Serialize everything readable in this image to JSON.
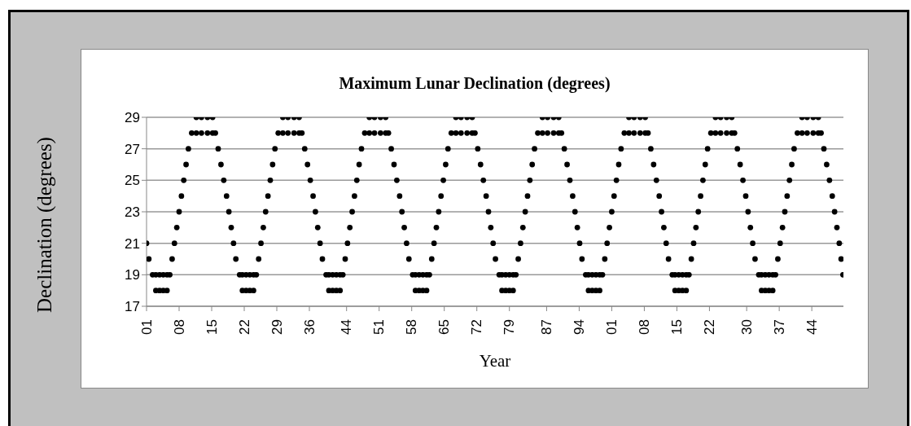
{
  "chart_data": {
    "type": "scatter",
    "title": "Maximum Lunar Declination  (degrees)",
    "xlabel": "Year",
    "ylabel": "Declination (degrees)",
    "color": "#000000",
    "marker": "circle",
    "grid": "y",
    "ylim": [
      17,
      29
    ],
    "yticks": [
      17,
      19,
      21,
      23,
      25,
      27,
      29
    ],
    "xlim": [
      1901,
      2050.8
    ],
    "xticks": [
      {
        "value": 1901,
        "label": "01"
      },
      {
        "value": 1908,
        "label": "08"
      },
      {
        "value": 1915,
        "label": "15"
      },
      {
        "value": 1922,
        "label": "22"
      },
      {
        "value": 1929,
        "label": "29"
      },
      {
        "value": 1936,
        "label": "36"
      },
      {
        "value": 1944,
        "label": "44"
      },
      {
        "value": 1951,
        "label": "51"
      },
      {
        "value": 1958,
        "label": "58"
      },
      {
        "value": 1965,
        "label": "65"
      },
      {
        "value": 1972,
        "label": "72"
      },
      {
        "value": 1979,
        "label": "79"
      },
      {
        "value": 1987,
        "label": "87"
      },
      {
        "value": 1994,
        "label": "94"
      },
      {
        "value": 2001,
        "label": "01"
      },
      {
        "value": 2008,
        "label": "08"
      },
      {
        "value": 2015,
        "label": "15"
      },
      {
        "value": 2022,
        "label": "22"
      },
      {
        "value": 2030,
        "label": "30"
      },
      {
        "value": 2037,
        "label": "37"
      },
      {
        "value": 2044,
        "label": "44"
      }
    ],
    "x": [
      1901.0,
      1901.5,
      1902.3,
      1903.0,
      1903.0,
      1903.8,
      1903.8,
      1904.6,
      1904.6,
      1905.4,
      1905.4,
      1906.0,
      1906.5,
      1907.0,
      1907.5,
      1908.0,
      1908.5,
      1909.0,
      1909.5,
      1910.0,
      1910.7,
      1911.7,
      1911.7,
      1912.8,
      1912.8,
      1914.1,
      1914.1,
      1915.2,
      1915.2,
      1915.8,
      1916.4,
      1917.0,
      1917.6,
      1918.2,
      1918.7,
      1919.2,
      1919.7,
      1920.2,
      1921.0,
      1921.6,
      1921.6,
      1922.4,
      1922.4,
      1923.2,
      1923.2,
      1924.0,
      1924.0,
      1924.6,
      1925.1,
      1925.6,
      1926.1,
      1926.6,
      1927.1,
      1927.6,
      1928.1,
      1928.6,
      1929.3,
      1930.3,
      1930.3,
      1931.4,
      1931.4,
      1932.7,
      1932.7,
      1933.8,
      1933.8,
      1934.4,
      1935.0,
      1935.6,
      1936.2,
      1936.8,
      1937.3,
      1937.8,
      1938.3,
      1938.8,
      1939.6,
      1940.2,
      1940.2,
      1941.0,
      1941.0,
      1941.8,
      1941.8,
      1942.6,
      1942.6,
      1943.2,
      1943.7,
      1944.2,
      1944.7,
      1945.2,
      1945.7,
      1946.2,
      1946.7,
      1947.2,
      1947.9,
      1948.9,
      1948.9,
      1950.0,
      1950.0,
      1951.3,
      1951.3,
      1952.4,
      1952.4,
      1953.0,
      1953.6,
      1954.2,
      1954.8,
      1955.4,
      1955.9,
      1956.4,
      1956.9,
      1957.4,
      1958.2,
      1958.8,
      1958.8,
      1959.6,
      1959.6,
      1960.4,
      1960.4,
      1961.2,
      1961.2,
      1961.8,
      1962.3,
      1962.8,
      1963.3,
      1963.8,
      1964.3,
      1964.8,
      1965.3,
      1965.8,
      1966.5,
      1967.5,
      1967.5,
      1968.6,
      1968.6,
      1969.9,
      1969.9,
      1971.0,
      1971.0,
      1971.6,
      1972.2,
      1972.8,
      1973.4,
      1974.0,
      1974.5,
      1975.0,
      1975.5,
      1976.0,
      1976.8,
      1977.4,
      1977.4,
      1978.2,
      1978.2,
      1979.0,
      1979.0,
      1979.8,
      1979.8,
      1980.4,
      1980.9,
      1981.4,
      1981.9,
      1982.4,
      1982.9,
      1983.4,
      1983.9,
      1984.4,
      1985.1,
      1986.1,
      1986.1,
      1987.2,
      1987.2,
      1988.5,
      1988.5,
      1989.6,
      1989.6,
      1990.2,
      1990.8,
      1991.4,
      1992.0,
      1992.6,
      1993.1,
      1993.6,
      1994.1,
      1994.6,
      1995.4,
      1996.0,
      1996.0,
      1996.8,
      1996.8,
      1997.6,
      1997.6,
      1998.4,
      1998.4,
      1999.0,
      1999.5,
      2000.0,
      2000.5,
      2001.0,
      2001.5,
      2002.0,
      2002.5,
      2003.0,
      2003.7,
      2004.7,
      2004.7,
      2005.8,
      2005.8,
      2007.1,
      2007.1,
      2008.2,
      2008.2,
      2008.8,
      2009.4,
      2010.0,
      2010.6,
      2011.2,
      2011.7,
      2012.2,
      2012.7,
      2013.2,
      2014.0,
      2014.6,
      2014.6,
      2015.4,
      2015.4,
      2016.2,
      2016.2,
      2017.0,
      2017.0,
      2017.6,
      2018.1,
      2018.6,
      2019.1,
      2019.6,
      2020.1,
      2020.6,
      2021.1,
      2021.6,
      2022.3,
      2023.3,
      2023.3,
      2024.4,
      2024.4,
      2025.7,
      2025.7,
      2026.8,
      2026.8,
      2027.4,
      2028.0,
      2028.6,
      2029.2,
      2029.8,
      2030.3,
      2030.8,
      2031.3,
      2031.8,
      2032.6,
      2033.2,
      2033.2,
      2034.0,
      2034.0,
      2034.8,
      2034.8,
      2035.6,
      2035.6,
      2036.2,
      2036.7,
      2037.2,
      2037.7,
      2038.2,
      2038.7,
      2039.2,
      2039.7,
      2040.2,
      2040.9,
      2041.9,
      2041.9,
      2043.0,
      2043.0,
      2044.3,
      2044.3,
      2045.4,
      2045.4,
      2046.0,
      2046.6,
      2047.2,
      2047.8,
      2048.4,
      2048.9,
      2049.4,
      2049.9,
      2050.3,
      2050.7
    ],
    "values": [
      21,
      20,
      19,
      19,
      18,
      19,
      18,
      19,
      18,
      19,
      18,
      19,
      20,
      21,
      22,
      23,
      24,
      25,
      26,
      27,
      28,
      28,
      29,
      28,
      29,
      28,
      29,
      28,
      29,
      28,
      27,
      26,
      25,
      24,
      23,
      22,
      21,
      20,
      19,
      19,
      18,
      19,
      18,
      19,
      18,
      19,
      18,
      19,
      20,
      21,
      22,
      23,
      24,
      25,
      26,
      27,
      28,
      28,
      29,
      28,
      29,
      28,
      29,
      28,
      29,
      28,
      27,
      26,
      25,
      24,
      23,
      22,
      21,
      20,
      19,
      19,
      18,
      19,
      18,
      19,
      18,
      19,
      18,
      19,
      20,
      21,
      22,
      23,
      24,
      25,
      26,
      27,
      28,
      28,
      29,
      28,
      29,
      28,
      29,
      28,
      29,
      28,
      27,
      26,
      25,
      24,
      23,
      22,
      21,
      20,
      19,
      19,
      18,
      19,
      18,
      19,
      18,
      19,
      18,
      19,
      20,
      21,
      22,
      23,
      24,
      25,
      26,
      27,
      28,
      28,
      29,
      28,
      29,
      28,
      29,
      28,
      29,
      28,
      27,
      26,
      25,
      24,
      23,
      22,
      21,
      20,
      19,
      19,
      18,
      19,
      18,
      19,
      18,
      19,
      18,
      19,
      20,
      21,
      22,
      23,
      24,
      25,
      26,
      27,
      28,
      28,
      29,
      28,
      29,
      28,
      29,
      28,
      29,
      28,
      27,
      26,
      25,
      24,
      23,
      22,
      21,
      20,
      19,
      19,
      18,
      19,
      18,
      19,
      18,
      19,
      18,
      19,
      20,
      21,
      22,
      23,
      24,
      25,
      26,
      27,
      28,
      28,
      29,
      28,
      29,
      28,
      29,
      28,
      29,
      28,
      27,
      26,
      25,
      24,
      23,
      22,
      21,
      20,
      19,
      19,
      18,
      19,
      18,
      19,
      18,
      19,
      18,
      19,
      20,
      21,
      22,
      23,
      24,
      25,
      26,
      27,
      28,
      28,
      29,
      28,
      29,
      28,
      29,
      28,
      29,
      28,
      27,
      26,
      25,
      24,
      23,
      22,
      21,
      20,
      19,
      19,
      18,
      19,
      18,
      19,
      18,
      19,
      18,
      19,
      20,
      21,
      22,
      23,
      24,
      25,
      26,
      27,
      28,
      28,
      29,
      28,
      29,
      28,
      29,
      28,
      29,
      28,
      27,
      26,
      25,
      24,
      23,
      22,
      21,
      20,
      19
    ]
  }
}
